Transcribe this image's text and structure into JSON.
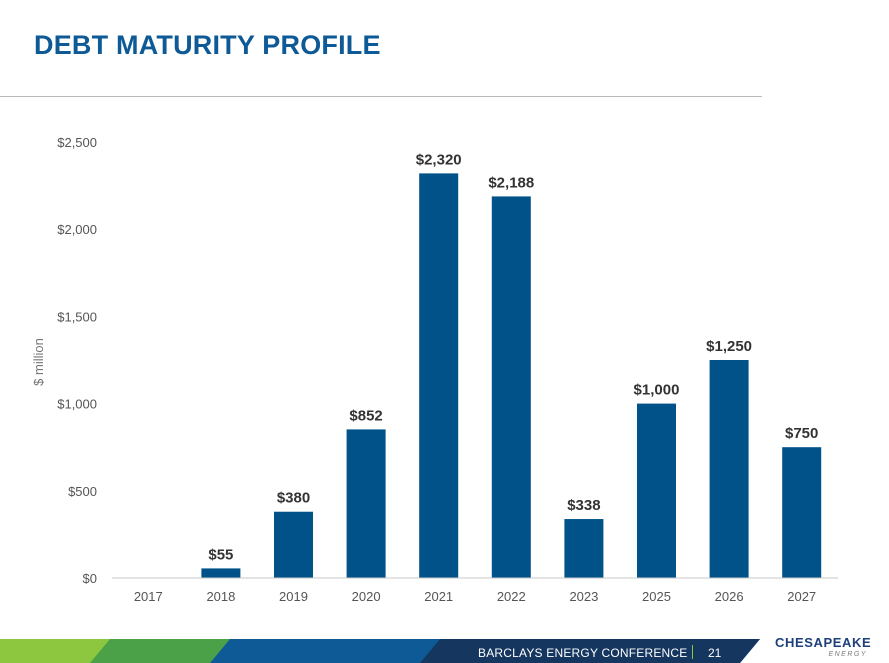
{
  "slide": {
    "title": "DEBT MATURITY PROFILE",
    "footer_text": "BARCLAYS ENERGY CONFERENCE",
    "page_number": "21",
    "logo_text": "CHESAPEAKE",
    "logo_subtext": "ENERGY"
  },
  "colors": {
    "title": "#0e5a96",
    "bar": "#005288",
    "footer_green": "#8dc63f",
    "footer_navy": "#15365f",
    "footer_blue": "#0e5a96"
  },
  "chart_data": {
    "type": "bar",
    "title": "",
    "xlabel": "",
    "ylabel": "$ million",
    "categories": [
      "2017",
      "2018",
      "2019",
      "2020",
      "2021",
      "2022",
      "2023",
      "2025",
      "2026",
      "2027"
    ],
    "values": [
      0,
      55,
      380,
      852,
      2320,
      2188,
      338,
      1000,
      1250,
      750
    ],
    "value_labels": [
      "",
      "$55",
      "$380",
      "$852",
      "$2,320",
      "$2,188",
      "$338",
      "$1,000",
      "$1,250",
      "$750"
    ],
    "ylim": [
      0,
      2500
    ],
    "yticks": [
      0,
      500,
      1000,
      1500,
      2000,
      2500
    ],
    "ytick_labels": [
      "$0",
      "$500",
      "$1,000",
      "$1,500",
      "$2,000",
      "$2,500"
    ],
    "grid": false,
    "legend": "none"
  }
}
